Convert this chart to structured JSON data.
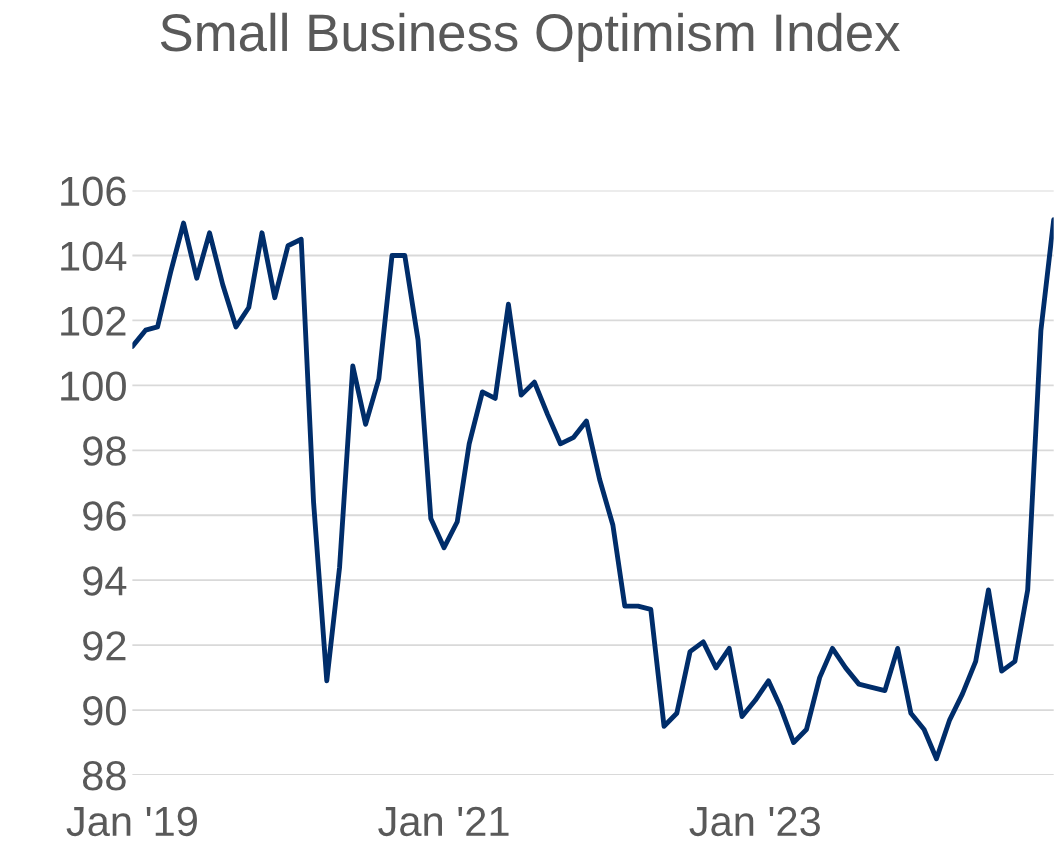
{
  "chart_data": {
    "type": "line",
    "title": "Small Business Optimism Index",
    "x": [
      "2019-01",
      "2019-02",
      "2019-03",
      "2019-04",
      "2019-05",
      "2019-06",
      "2019-07",
      "2019-08",
      "2019-09",
      "2019-10",
      "2019-11",
      "2019-12",
      "2020-01",
      "2020-02",
      "2020-03",
      "2020-04",
      "2020-05",
      "2020-06",
      "2020-07",
      "2020-08",
      "2020-09",
      "2020-10",
      "2020-11",
      "2020-12",
      "2021-01",
      "2021-02",
      "2021-03",
      "2021-04",
      "2021-05",
      "2021-06",
      "2021-07",
      "2021-08",
      "2021-09",
      "2021-10",
      "2021-11",
      "2021-12",
      "2022-01",
      "2022-02",
      "2022-03",
      "2022-04",
      "2022-05",
      "2022-06",
      "2022-07",
      "2022-08",
      "2022-09",
      "2022-10",
      "2022-11",
      "2022-12",
      "2023-01",
      "2023-02",
      "2023-03",
      "2023-04",
      "2023-05",
      "2023-06",
      "2023-07",
      "2023-08",
      "2023-09",
      "2023-10",
      "2023-11",
      "2023-12",
      "2024-01",
      "2024-02",
      "2024-03",
      "2024-04",
      "2024-05",
      "2024-06",
      "2024-07",
      "2024-08",
      "2024-09",
      "2024-10",
      "2024-11",
      "2024-12"
    ],
    "series": [
      {
        "color": "#002d6a",
        "values": [
          101.2,
          101.7,
          101.8,
          103.5,
          105.0,
          103.3,
          104.7,
          103.1,
          101.8,
          102.4,
          104.7,
          102.7,
          104.3,
          104.5,
          96.4,
          90.9,
          94.4,
          100.6,
          98.8,
          100.2,
          104.0,
          104.0,
          101.4,
          95.9,
          95.0,
          95.8,
          98.2,
          99.8,
          99.6,
          102.5,
          99.7,
          100.1,
          99.1,
          98.2,
          98.4,
          98.9,
          97.1,
          95.7,
          93.2,
          93.2,
          93.1,
          89.5,
          89.9,
          91.8,
          92.1,
          91.3,
          91.9,
          89.8,
          90.3,
          90.9,
          90.1,
          89.0,
          89.4,
          91.0,
          91.9,
          91.3,
          90.8,
          90.7,
          90.6,
          91.9,
          89.9,
          89.4,
          88.5,
          89.7,
          90.5,
          91.5,
          93.7,
          91.2,
          91.5,
          93.7,
          101.7,
          105.1
        ]
      }
    ],
    "xlim": [
      "2019-01",
      "2024-12"
    ],
    "xticks": [
      {
        "value": "2019-01",
        "label": "Jan '19"
      },
      {
        "value": "2021-01",
        "label": "Jan '21"
      },
      {
        "value": "2023-01",
        "label": "Jan '23"
      }
    ],
    "ylim": [
      88,
      106
    ],
    "yticks": [
      88,
      90,
      92,
      94,
      96,
      98,
      100,
      102,
      104,
      106
    ],
    "grid": "y",
    "line_style": "solid",
    "marker": "none"
  }
}
